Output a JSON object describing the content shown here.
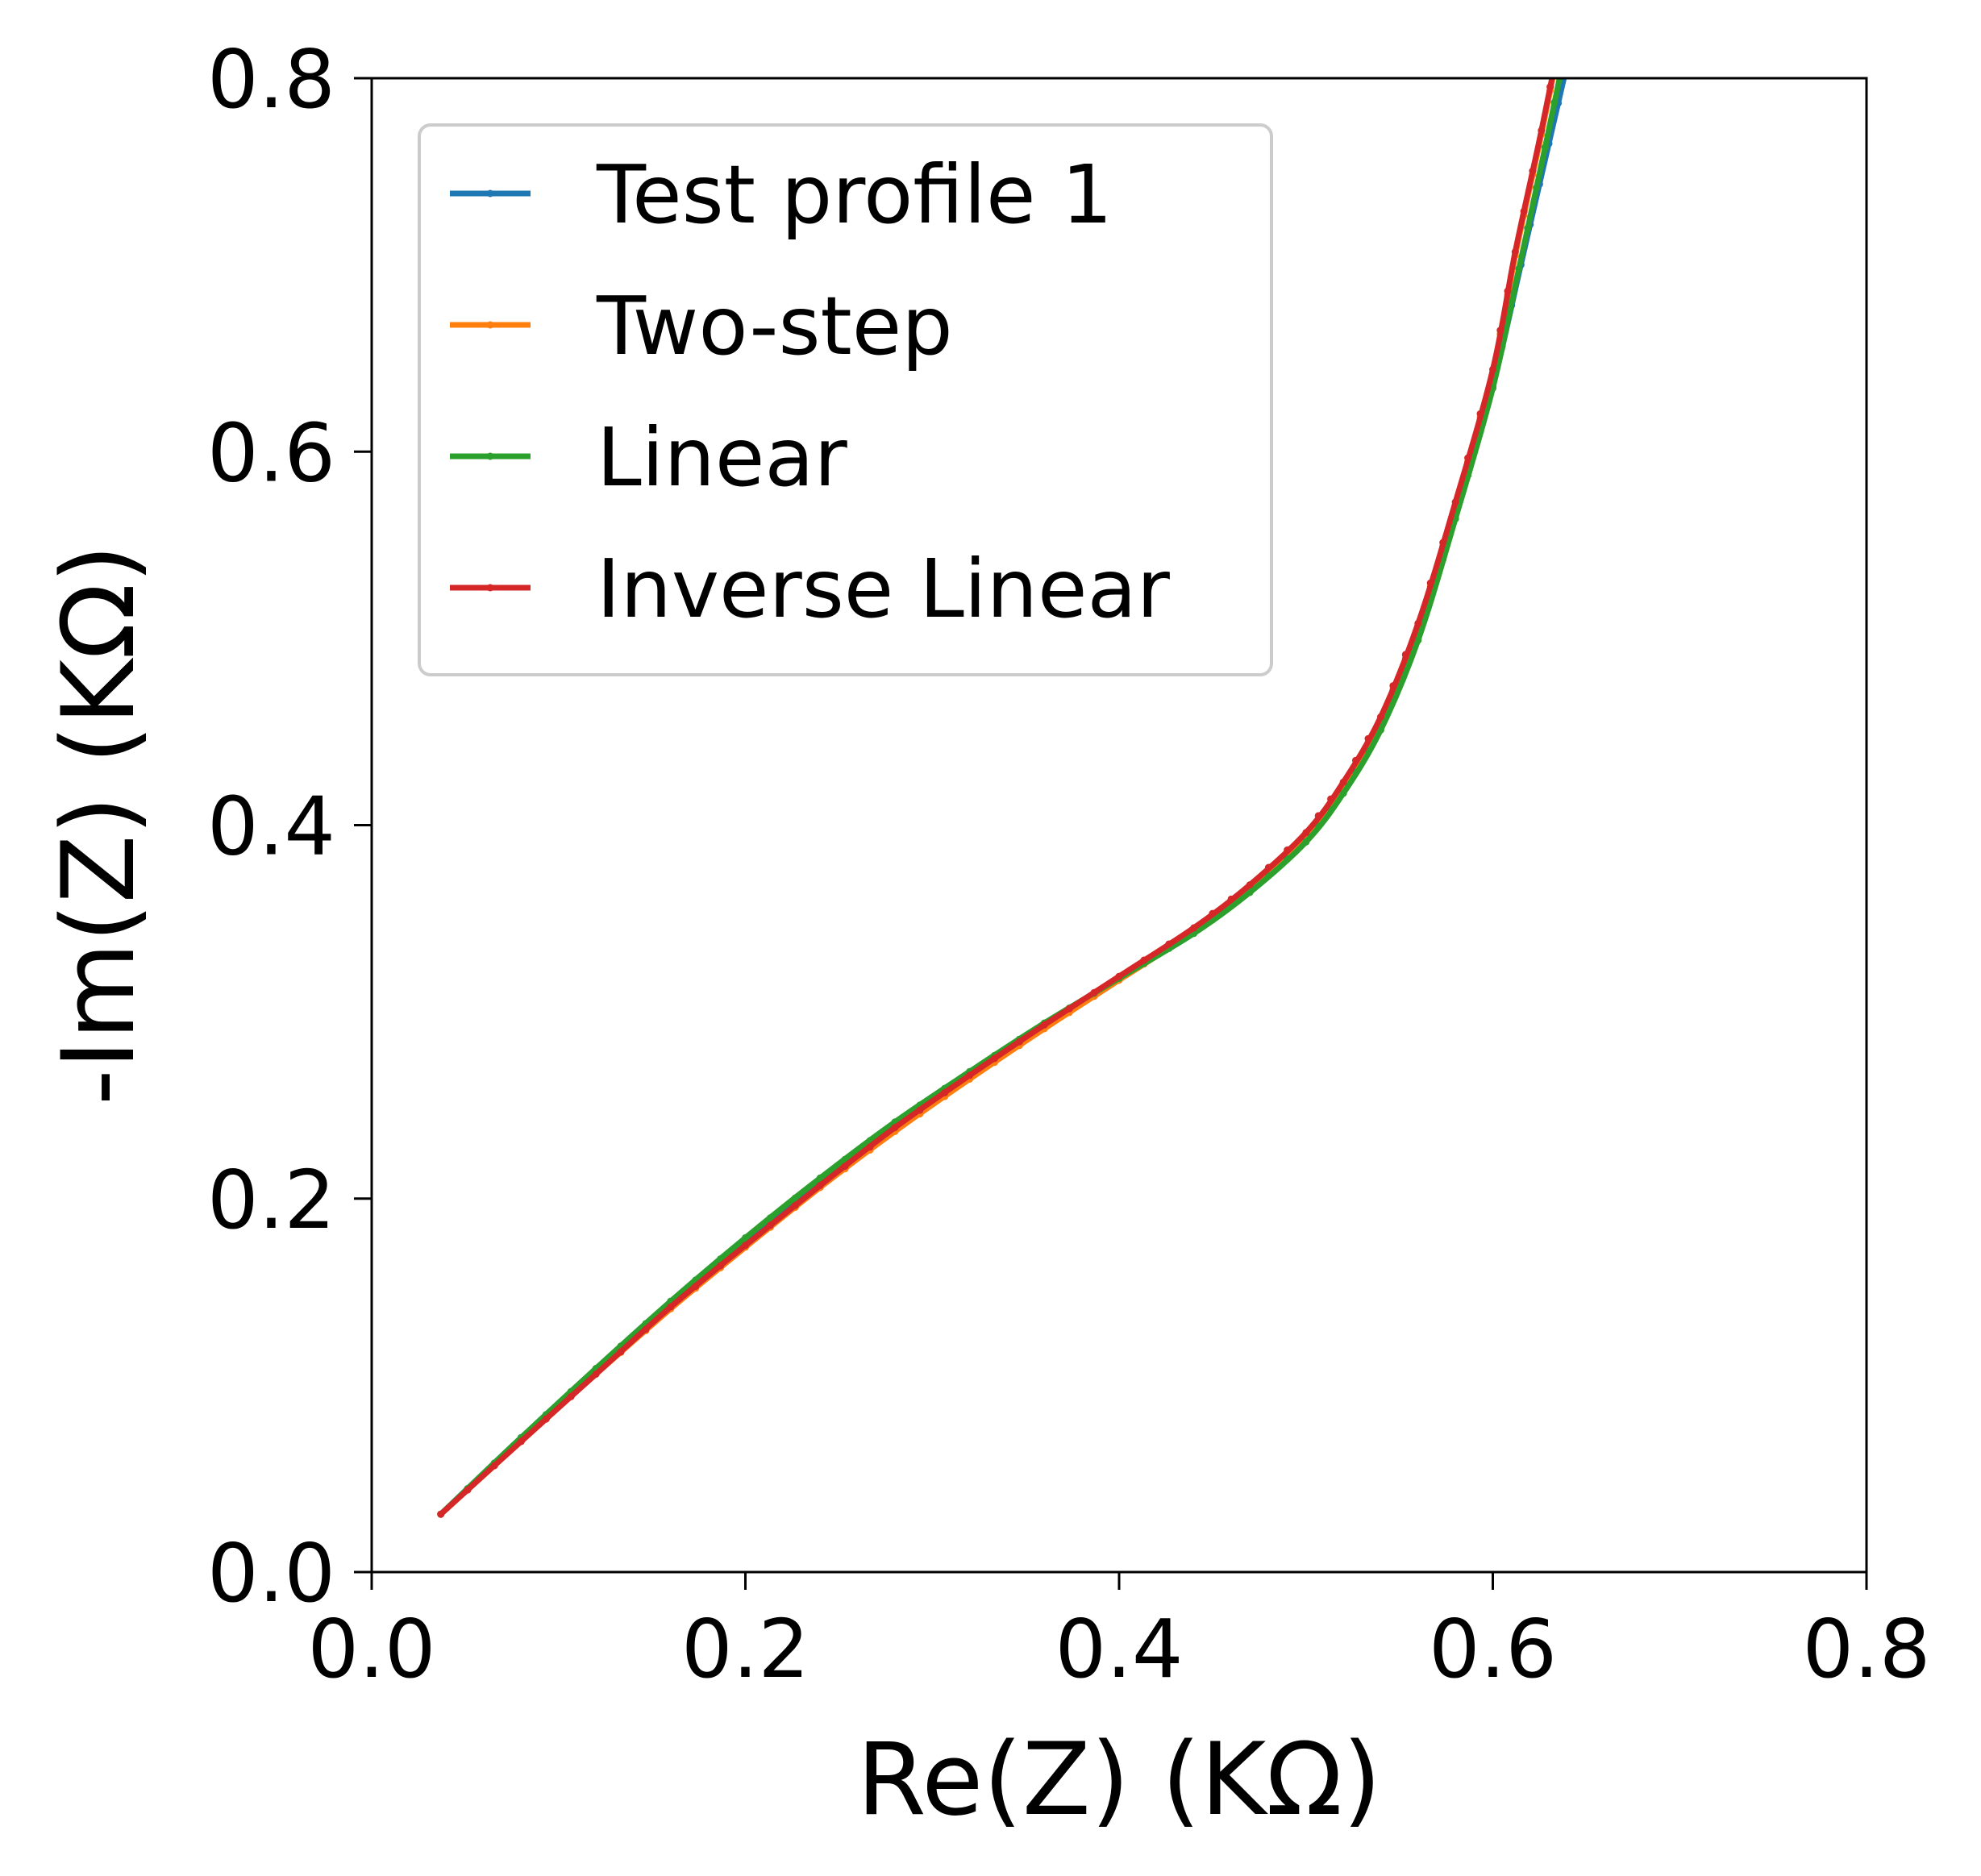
{
  "chart_data": {
    "type": "line",
    "title": "",
    "xlabel": "Re(Z) (KΩ)",
    "ylabel": "-Im(Z) (KΩ)",
    "xlim": [
      0.0,
      0.8
    ],
    "ylim": [
      0.0,
      0.8
    ],
    "x_ticks": [
      "0.0",
      "0.2",
      "0.4",
      "0.6",
      "0.8"
    ],
    "y_ticks": [
      "0.0",
      "0.2",
      "0.4",
      "0.6",
      "0.8"
    ],
    "grid": false,
    "legend_position": "top-left",
    "series": [
      {
        "name": "Test profile 1",
        "color": "#1f77b4",
        "x": [
          0.037,
          0.08,
          0.12,
          0.16,
          0.2,
          0.24,
          0.28,
          0.32,
          0.36,
          0.4,
          0.44,
          0.47,
          0.5,
          0.52,
          0.54,
          0.56,
          0.58,
          0.6,
          0.615,
          0.63,
          0.645
        ],
        "y": [
          0.031,
          0.072,
          0.108,
          0.144,
          0.178,
          0.21,
          0.24,
          0.267,
          0.293,
          0.318,
          0.343,
          0.365,
          0.392,
          0.418,
          0.452,
          0.5,
          0.565,
          0.635,
          0.7,
          0.765,
          0.83
        ]
      },
      {
        "name": "Two-step",
        "color": "#ff7f0e",
        "x": [
          0.037,
          0.08,
          0.12,
          0.16,
          0.2,
          0.24,
          0.28,
          0.32,
          0.36,
          0.4,
          0.44,
          0.47,
          0.5,
          0.52,
          0.54,
          0.56,
          0.58,
          0.6,
          0.612,
          0.626,
          0.64
        ],
        "y": [
          0.031,
          0.07,
          0.106,
          0.141,
          0.174,
          0.206,
          0.236,
          0.264,
          0.291,
          0.317,
          0.343,
          0.366,
          0.394,
          0.421,
          0.456,
          0.506,
          0.571,
          0.642,
          0.705,
          0.77,
          0.84
        ]
      },
      {
        "name": "Linear",
        "color": "#2ca02c",
        "x": [
          0.037,
          0.08,
          0.12,
          0.16,
          0.2,
          0.24,
          0.28,
          0.32,
          0.36,
          0.4,
          0.44,
          0.47,
          0.5,
          0.52,
          0.54,
          0.56,
          0.58,
          0.6,
          0.614,
          0.628,
          0.643
        ],
        "y": [
          0.031,
          0.072,
          0.109,
          0.145,
          0.179,
          0.211,
          0.241,
          0.268,
          0.294,
          0.318,
          0.342,
          0.364,
          0.391,
          0.417,
          0.451,
          0.499,
          0.564,
          0.634,
          0.698,
          0.763,
          0.835
        ]
      },
      {
        "name": "Inverse Linear",
        "color": "#d62728",
        "x": [
          0.037,
          0.08,
          0.12,
          0.16,
          0.2,
          0.24,
          0.28,
          0.32,
          0.36,
          0.4,
          0.44,
          0.47,
          0.5,
          0.52,
          0.54,
          0.56,
          0.58,
          0.6,
          0.612,
          0.626,
          0.64
        ],
        "y": [
          0.031,
          0.07,
          0.106,
          0.142,
          0.175,
          0.207,
          0.238,
          0.266,
          0.293,
          0.319,
          0.345,
          0.368,
          0.396,
          0.423,
          0.458,
          0.508,
          0.573,
          0.644,
          0.707,
          0.772,
          0.842
        ]
      }
    ]
  }
}
